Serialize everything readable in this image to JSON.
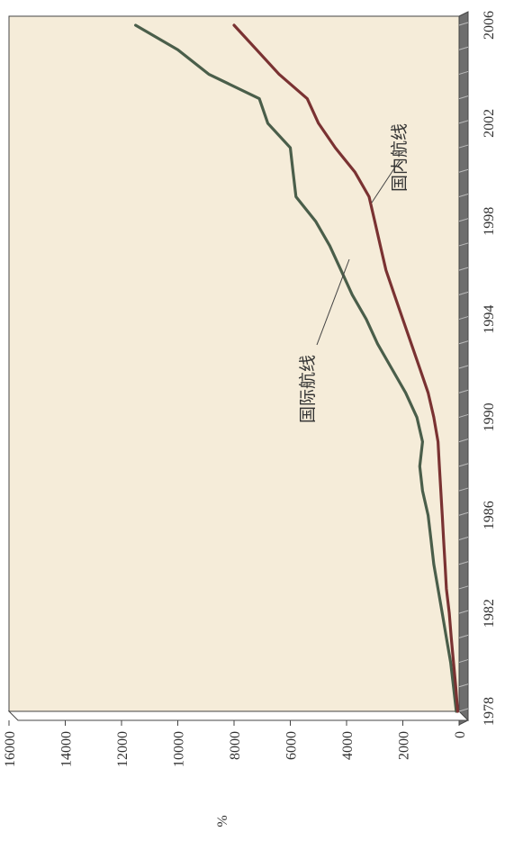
{
  "chart_data": {
    "type": "line",
    "title": "",
    "x": [
      1978,
      1979,
      1980,
      1981,
      1982,
      1983,
      1984,
      1985,
      1986,
      1987,
      1988,
      1989,
      1990,
      1991,
      1992,
      1993,
      1994,
      1995,
      1996,
      1997,
      1998,
      1999,
      2000,
      2001,
      2002,
      2003,
      2004,
      2005,
      2006
    ],
    "x_ticks": [
      "1978",
      "1982",
      "1986",
      "1990",
      "1994",
      "1998",
      "2002",
      "2006"
    ],
    "xlim": [
      1978,
      2006
    ],
    "y_ticks": [
      "0",
      "2000",
      "4000",
      "6000",
      "8000",
      "10000",
      "12000",
      "14000",
      "16000"
    ],
    "ylim": [
      0,
      16000
    ],
    "ylabel": "%",
    "series": [
      {
        "name": "国际航线",
        "color": "#4a5e4a",
        "values": [
          100,
          200,
          300,
          450,
          600,
          750,
          900,
          1000,
          1100,
          1300,
          1400,
          1300,
          1500,
          1900,
          2400,
          2900,
          3300,
          3800,
          4200,
          4600,
          5100,
          5800,
          5900,
          6000,
          6800,
          7100,
          8900,
          10000,
          11500
        ]
      },
      {
        "name": "国内航线",
        "color": "#7a3232",
        "values": [
          50,
          120,
          200,
          280,
          350,
          450,
          500,
          550,
          600,
          650,
          700,
          750,
          900,
          1100,
          1400,
          1700,
          2000,
          2300,
          2600,
          2800,
          3000,
          3200,
          3700,
          4400,
          5000,
          5400,
          6400,
          7200,
          8000
        ]
      }
    ],
    "annotations": [
      "国际航线",
      "国内航线"
    ],
    "grid": false,
    "legend": "none",
    "colors": {
      "plot_background": "#f5ecd9",
      "floor": "#6e6e6e",
      "axis": "#444444"
    }
  }
}
